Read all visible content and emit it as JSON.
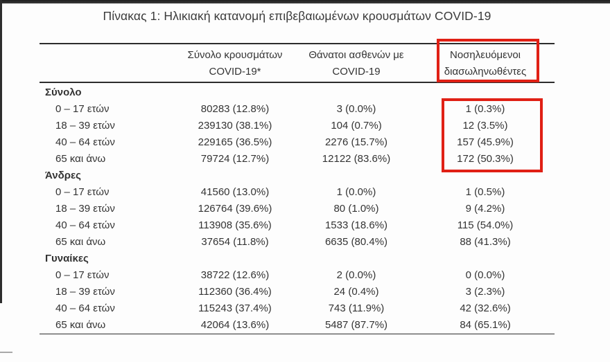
{
  "page": {
    "title": "Πίνακας 1: Ηλικιακή κατανομή επιβεβαιωμένων κρουσμάτων COVID-19"
  },
  "colors": {
    "highlight_red": "#e02015",
    "table_line": "#2c2c2c",
    "text": "#333333"
  },
  "table": {
    "headers": {
      "cases": {
        "line1": "Σύνολο κρουσμάτων",
        "line2": "COVID-19*"
      },
      "deaths": {
        "line1": "Θάνατοι ασθενών με",
        "line2": "COVID-19"
      },
      "intubated": {
        "line1": "Νοσηλευόμενοι",
        "line2": "διασωληνωθέντες"
      }
    },
    "sections": [
      {
        "label": "Σύνολο",
        "rows": [
          {
            "age": "0 – 17 ετών",
            "cases": "80283 (12.8%)",
            "deaths": "3 (0.0%)",
            "intubated": "1 (0.3%)"
          },
          {
            "age": "18 – 39 ετών",
            "cases": "239130 (38.1%)",
            "deaths": "104 (0.7%)",
            "intubated": "12 (3.5%)"
          },
          {
            "age": "40 – 64 ετών",
            "cases": "229165 (36.5%)",
            "deaths": "2276 (15.7%)",
            "intubated": "157 (45.9%)"
          },
          {
            "age": "65 και άνω",
            "cases": "79724 (12.7%)",
            "deaths": "12122 (83.6%)",
            "intubated": "172 (50.3%)"
          }
        ]
      },
      {
        "label": "Άνδρες",
        "rows": [
          {
            "age": "0 – 17 ετών",
            "cases": "41560 (13.0%)",
            "deaths": "1 (0.0%)",
            "intubated": "1 (0.5%)"
          },
          {
            "age": "18 – 39 ετών",
            "cases": "126764 (39.6%)",
            "deaths": "80 (1.0%)",
            "intubated": "9 (4.2%)"
          },
          {
            "age": "40 – 64 ετών",
            "cases": "113908 (35.6%)",
            "deaths": "1533 (18.6%)",
            "intubated": "115 (54.0%)"
          },
          {
            "age": "65 και άνω",
            "cases": "37654 (11.8%)",
            "deaths": "6635 (80.4%)",
            "intubated": "88 (41.3%)"
          }
        ]
      },
      {
        "label": "Γυναίκες",
        "rows": [
          {
            "age": "0 – 17 ετών",
            "cases": "38722 (12.6%)",
            "deaths": "2 (0.0%)",
            "intubated": "0 (0.0%)"
          },
          {
            "age": "18 – 39 ετών",
            "cases": "112360 (36.4%)",
            "deaths": "24 (0.4%)",
            "intubated": "3 (2.3%)"
          },
          {
            "age": "40 – 64 ετών",
            "cases": "115243 (37.4%)",
            "deaths": "743 (11.9%)",
            "intubated": "42 (32.6%)"
          },
          {
            "age": "65 και άνω",
            "cases": "42064 (13.6%)",
            "deaths": "5487 (87.7%)",
            "intubated": "84 (65.1%)"
          }
        ]
      }
    ]
  }
}
